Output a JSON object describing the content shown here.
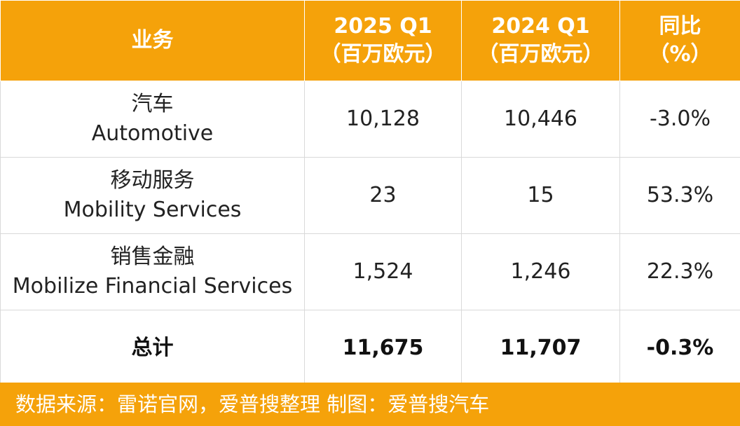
{
  "header": {
    "business": "业务",
    "col2025_line1": "2025 Q1",
    "col2025_line2": "（百万欧元）",
    "col2024_line1": "2024 Q1",
    "col2024_line2": "（百万欧元）",
    "yoy_line1": "同比",
    "yoy_line2": "（%）"
  },
  "rows": [
    {
      "name_cn": "汽车",
      "name_en": "Automotive",
      "v2025": "10,128",
      "v2024": "10,446",
      "yoy": "-3.0%"
    },
    {
      "name_cn": "移动服务",
      "name_en": "Mobility Services",
      "v2025": "23",
      "v2024": "15",
      "yoy": "53.3%"
    },
    {
      "name_cn": "销售金融",
      "name_en": "Mobilize Financial Services",
      "v2025": "1,524",
      "v2024": "1,246",
      "yoy": "22.3%"
    }
  ],
  "total": {
    "label": "总计",
    "v2025": "11,675",
    "v2024": "11,707",
    "yoy": "-0.3%"
  },
  "footer": {
    "text": "数据来源：雷诺官网，爱普搜整理   制图：爱普搜汽车"
  },
  "colors": {
    "accent": "#f5a20a",
    "text": "#222222"
  }
}
